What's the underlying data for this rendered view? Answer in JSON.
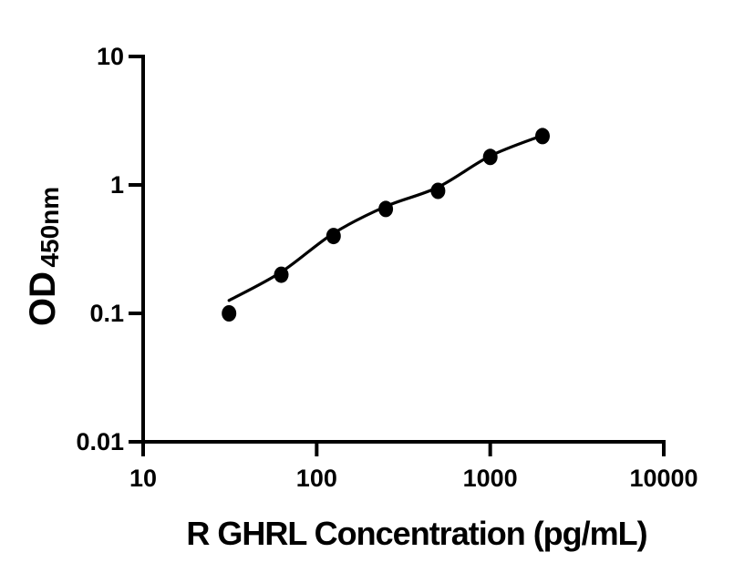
{
  "figure": {
    "background_color": "#ffffff"
  },
  "chart_data": {
    "type": "scatter",
    "title": "",
    "xlabel": "R GHRL Concentration (pg/mL)",
    "ylabel_main": "OD",
    "ylabel_sub": "450nm",
    "x_scale": "log10",
    "y_scale": "log10",
    "xlim": [
      10,
      10000
    ],
    "ylim": [
      0.01,
      10
    ],
    "x_ticks": [
      10,
      100,
      1000,
      10000
    ],
    "x_tick_labels": [
      "10",
      "100",
      "1000",
      "10000"
    ],
    "y_ticks": [
      10,
      1,
      0.1,
      0.01
    ],
    "y_tick_labels": [
      "10",
      "1",
      "0.1",
      "0.01"
    ],
    "grid": false,
    "legend": null,
    "series": [
      {
        "name": "standard-points",
        "marker": "filled-circle",
        "color": "#000000",
        "x": [
          31.25,
          62.5,
          125,
          250,
          500,
          1000,
          2000
        ],
        "y": [
          0.1,
          0.2,
          0.4,
          0.65,
          0.9,
          1.65,
          2.4
        ]
      }
    ],
    "fit_curve": {
      "name": "fitted-standard-curve",
      "color": "#000000",
      "x": [
        31.25,
        62.5,
        125,
        250,
        500,
        1000,
        2000
      ],
      "y": [
        0.126,
        0.21,
        0.42,
        0.68,
        0.96,
        1.68,
        2.43
      ]
    },
    "colors": {
      "axis": "#000000",
      "text": "#000000",
      "marker": "#000000",
      "line": "#000000"
    }
  }
}
